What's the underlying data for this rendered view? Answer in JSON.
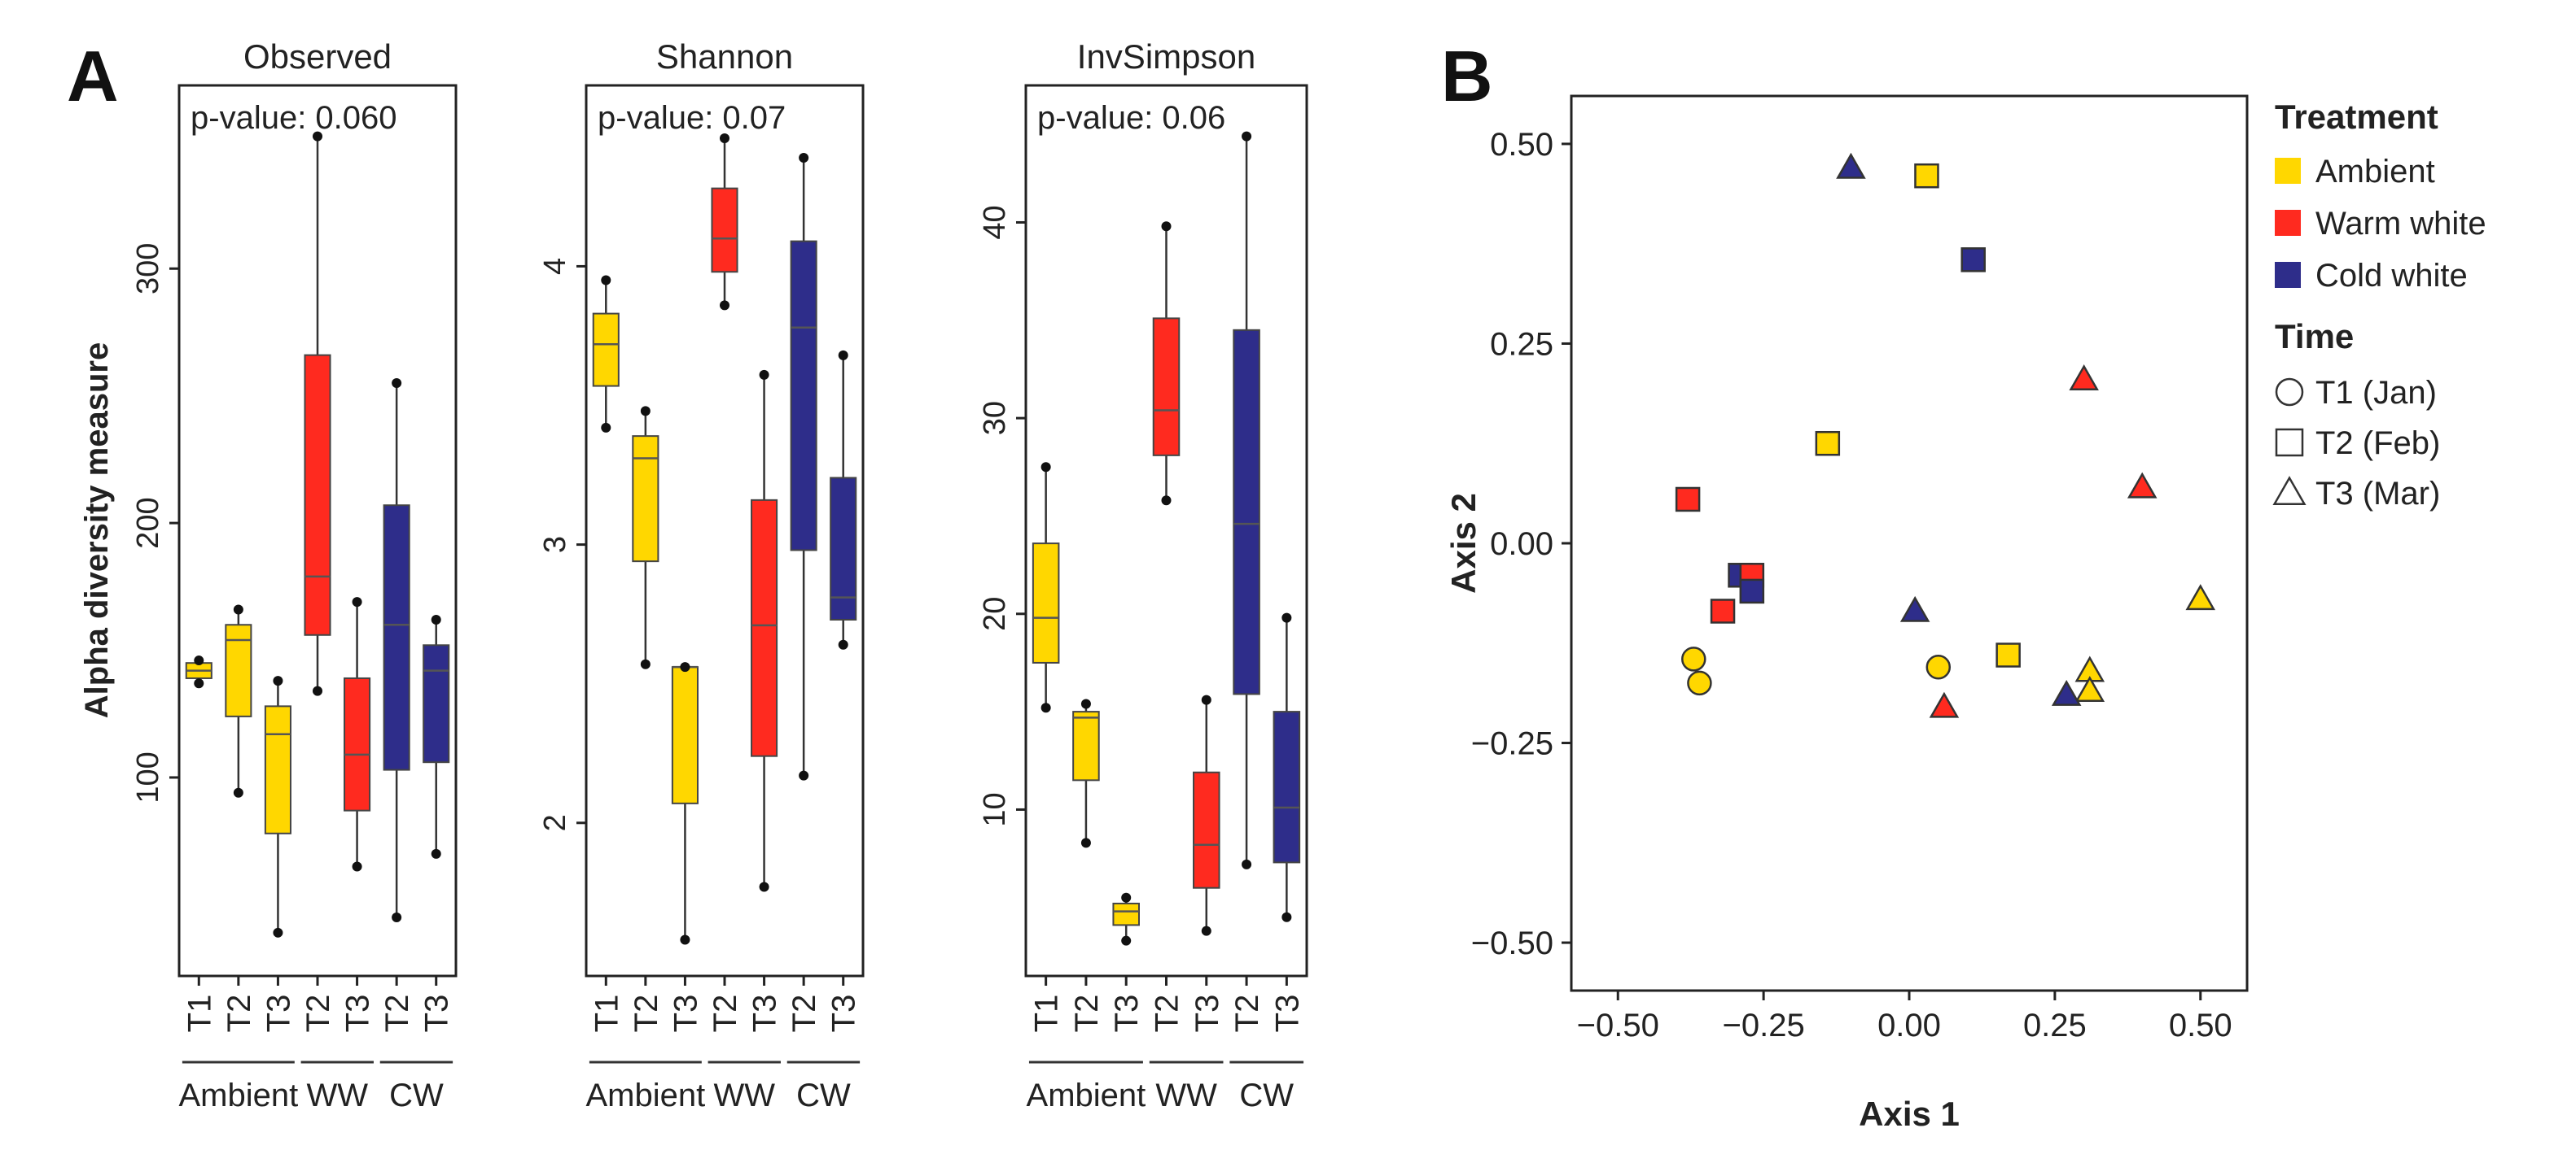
{
  "panel_labels": {
    "a": "A",
    "b": "B"
  },
  "colors": {
    "Ambient": "#FFD700",
    "Warm white": "#FF2A1F",
    "Cold white": "#2E2D8A",
    "frame": "#222222",
    "median": "#555555"
  },
  "chart_data": [
    {
      "type": "box",
      "title": "Observed",
      "annotation": "p-value: 0.060",
      "ylabel": "Alpha diversity measure",
      "ylim": [
        22,
        372
      ],
      "yticks": [
        100,
        200,
        300
      ],
      "categories": [
        "T1",
        "T2",
        "T3",
        "T2",
        "T3",
        "T2",
        "T3"
      ],
      "groups": [
        {
          "label": "Ambient",
          "indices": [
            0,
            1,
            2
          ]
        },
        {
          "label": "WW",
          "indices": [
            3,
            4
          ]
        },
        {
          "label": "CW",
          "indices": [
            5,
            6
          ]
        }
      ],
      "boxes": [
        {
          "treatment": "Ambient",
          "min": 137,
          "q1": 139,
          "median": 142,
          "q3": 145,
          "max": 147,
          "outliers": [
            137,
            146
          ]
        },
        {
          "treatment": "Ambient",
          "min": 94,
          "q1": 124,
          "median": 154,
          "q3": 160,
          "max": 166,
          "outliers": [
            94,
            166
          ]
        },
        {
          "treatment": "Ambient",
          "min": 39,
          "q1": 78,
          "median": 117,
          "q3": 128,
          "max": 138,
          "outliers": [
            39,
            138
          ]
        },
        {
          "treatment": "Warm white",
          "min": 134,
          "q1": 156,
          "median": 179,
          "q3": 266,
          "max": 352,
          "outliers": [
            134,
            352
          ]
        },
        {
          "treatment": "Warm white",
          "min": 65,
          "q1": 87,
          "median": 109,
          "q3": 139,
          "max": 169,
          "outliers": [
            65,
            169
          ]
        },
        {
          "treatment": "Cold white",
          "min": 45,
          "q1": 103,
          "median": 160,
          "q3": 207,
          "max": 255,
          "outliers": [
            45,
            255
          ]
        },
        {
          "treatment": "Cold white",
          "min": 70,
          "q1": 106,
          "median": 142,
          "q3": 152,
          "max": 162,
          "outliers": [
            70,
            162
          ]
        }
      ]
    },
    {
      "type": "box",
      "title": "Shannon",
      "annotation": "p-value: 0.07",
      "ylim": [
        1.45,
        4.65
      ],
      "yticks": [
        2,
        3,
        4
      ],
      "categories": [
        "T1",
        "T2",
        "T3",
        "T2",
        "T3",
        "T2",
        "T3"
      ],
      "groups": [
        {
          "label": "Ambient",
          "indices": [
            0,
            1,
            2
          ]
        },
        {
          "label": "WW",
          "indices": [
            3,
            4
          ]
        },
        {
          "label": "CW",
          "indices": [
            5,
            6
          ]
        }
      ],
      "boxes": [
        {
          "treatment": "Ambient",
          "min": 3.42,
          "q1": 3.57,
          "median": 3.72,
          "q3": 3.83,
          "max": 3.95,
          "outliers": [
            3.42,
            3.95
          ]
        },
        {
          "treatment": "Ambient",
          "min": 2.57,
          "q1": 2.94,
          "median": 3.31,
          "q3": 3.39,
          "max": 3.48,
          "outliers": [
            2.57,
            3.48
          ]
        },
        {
          "treatment": "Ambient",
          "min": 1.58,
          "q1": 2.07,
          "median": 2.56,
          "q3": 2.56,
          "max": 2.56,
          "outliers": [
            1.58,
            2.56
          ]
        },
        {
          "treatment": "Warm white",
          "min": 3.86,
          "q1": 3.98,
          "median": 4.1,
          "q3": 4.28,
          "max": 4.46,
          "outliers": [
            3.86,
            4.46
          ]
        },
        {
          "treatment": "Warm white",
          "min": 1.77,
          "q1": 2.24,
          "median": 2.71,
          "q3": 3.16,
          "max": 3.61,
          "outliers": [
            1.77,
            3.61
          ]
        },
        {
          "treatment": "Cold white",
          "min": 2.17,
          "q1": 2.98,
          "median": 3.78,
          "q3": 4.09,
          "max": 4.39,
          "outliers": [
            2.17,
            4.39
          ]
        },
        {
          "treatment": "Cold white",
          "min": 2.64,
          "q1": 2.73,
          "median": 2.81,
          "q3": 3.24,
          "max": 3.68,
          "outliers": [
            2.64,
            3.68
          ]
        }
      ]
    },
    {
      "type": "box",
      "title": "InvSimpson",
      "annotation": "p-value: 0.06",
      "ylim": [
        1.5,
        47
      ],
      "yticks": [
        10,
        20,
        30,
        40
      ],
      "categories": [
        "T1",
        "T2",
        "T3",
        "T2",
        "T3",
        "T2",
        "T3"
      ],
      "groups": [
        {
          "label": "Ambient",
          "indices": [
            0,
            1,
            2
          ]
        },
        {
          "label": "WW",
          "indices": [
            3,
            4
          ]
        },
        {
          "label": "CW",
          "indices": [
            5,
            6
          ]
        }
      ],
      "boxes": [
        {
          "treatment": "Ambient",
          "min": 15.2,
          "q1": 17.5,
          "median": 19.8,
          "q3": 23.6,
          "max": 27.5,
          "outliers": [
            15.2,
            27.5
          ]
        },
        {
          "treatment": "Ambient",
          "min": 8.3,
          "q1": 11.5,
          "median": 14.7,
          "q3": 15.0,
          "max": 15.4,
          "outliers": [
            8.3,
            15.4
          ]
        },
        {
          "treatment": "Ambient",
          "min": 3.3,
          "q1": 4.1,
          "median": 4.8,
          "q3": 5.2,
          "max": 5.5,
          "outliers": [
            3.3,
            5.5
          ]
        },
        {
          "treatment": "Warm white",
          "min": 25.8,
          "q1": 28.1,
          "median": 30.4,
          "q3": 35.1,
          "max": 39.8,
          "outliers": [
            25.8,
            39.8
          ]
        },
        {
          "treatment": "Warm white",
          "min": 3.8,
          "q1": 6.0,
          "median": 8.2,
          "q3": 11.9,
          "max": 15.6,
          "outliers": [
            3.8,
            15.6
          ]
        },
        {
          "treatment": "Cold white",
          "min": 7.2,
          "q1": 15.9,
          "median": 24.6,
          "q3": 34.5,
          "max": 44.4,
          "outliers": [
            7.2,
            44.4
          ]
        },
        {
          "treatment": "Cold white",
          "min": 4.5,
          "q1": 7.3,
          "median": 10.1,
          "q3": 15.0,
          "max": 19.8,
          "outliers": [
            4.5,
            19.8
          ]
        }
      ]
    },
    {
      "type": "scatter",
      "xlabel": "Axis 1",
      "ylabel": "Axis 2",
      "xlim": [
        -0.58,
        0.58
      ],
      "ylim": [
        -0.56,
        0.56
      ],
      "xticks": [
        "−0.50",
        "−0.25",
        "0.00",
        "0.25",
        "0.50"
      ],
      "xtick_values": [
        -0.5,
        -0.25,
        0,
        0.25,
        0.5
      ],
      "yticks": [
        "0.50",
        "0.25",
        "0.00",
        "−0.25",
        "−0.50"
      ],
      "ytick_values": [
        0.5,
        0.25,
        0,
        -0.25,
        -0.5
      ],
      "legend": {
        "treatment_title": "Treatment",
        "treatments": [
          {
            "label": "Ambient",
            "key": "Ambient"
          },
          {
            "label": "Warm white",
            "key": "Warm white"
          },
          {
            "label": "Cold white",
            "key": "Cold white"
          }
        ],
        "time_title": "Time",
        "times": [
          {
            "label": "T1 (Jan)",
            "shape": "circle"
          },
          {
            "label": "T2 (Feb)",
            "shape": "square"
          },
          {
            "label": "T3 (Mar)",
            "shape": "triangle"
          }
        ]
      },
      "points": [
        {
          "x": -0.1,
          "y": 0.47,
          "treatment": "Cold white",
          "shape": "triangle"
        },
        {
          "x": 0.03,
          "y": 0.46,
          "treatment": "Ambient",
          "shape": "square"
        },
        {
          "x": 0.11,
          "y": 0.355,
          "treatment": "Cold white",
          "shape": "square"
        },
        {
          "x": 0.3,
          "y": 0.205,
          "treatment": "Warm white",
          "shape": "triangle"
        },
        {
          "x": -0.14,
          "y": 0.125,
          "treatment": "Ambient",
          "shape": "square"
        },
        {
          "x": 0.4,
          "y": 0.07,
          "treatment": "Warm white",
          "shape": "triangle"
        },
        {
          "x": -0.38,
          "y": 0.055,
          "treatment": "Warm white",
          "shape": "square"
        },
        {
          "x": -0.29,
          "y": -0.04,
          "treatment": "Cold white",
          "shape": "square"
        },
        {
          "x": -0.27,
          "y": -0.04,
          "treatment": "Warm white",
          "shape": "square"
        },
        {
          "x": -0.32,
          "y": -0.085,
          "treatment": "Warm white",
          "shape": "square"
        },
        {
          "x": -0.27,
          "y": -0.06,
          "treatment": "Cold white",
          "shape": "square"
        },
        {
          "x": 0.01,
          "y": -0.085,
          "treatment": "Cold white",
          "shape": "triangle"
        },
        {
          "x": 0.5,
          "y": -0.07,
          "treatment": "Ambient",
          "shape": "triangle"
        },
        {
          "x": -0.37,
          "y": -0.145,
          "treatment": "Ambient",
          "shape": "circle"
        },
        {
          "x": -0.36,
          "y": -0.175,
          "treatment": "Ambient",
          "shape": "circle"
        },
        {
          "x": 0.05,
          "y": -0.155,
          "treatment": "Ambient",
          "shape": "circle"
        },
        {
          "x": 0.17,
          "y": -0.14,
          "treatment": "Ambient",
          "shape": "square"
        },
        {
          "x": 0.31,
          "y": -0.16,
          "treatment": "Ambient",
          "shape": "triangle"
        },
        {
          "x": 0.31,
          "y": -0.185,
          "treatment": "Ambient",
          "shape": "triangle"
        },
        {
          "x": 0.27,
          "y": -0.19,
          "treatment": "Cold white",
          "shape": "triangle"
        },
        {
          "x": 0.06,
          "y": -0.205,
          "treatment": "Warm white",
          "shape": "triangle"
        }
      ]
    }
  ]
}
